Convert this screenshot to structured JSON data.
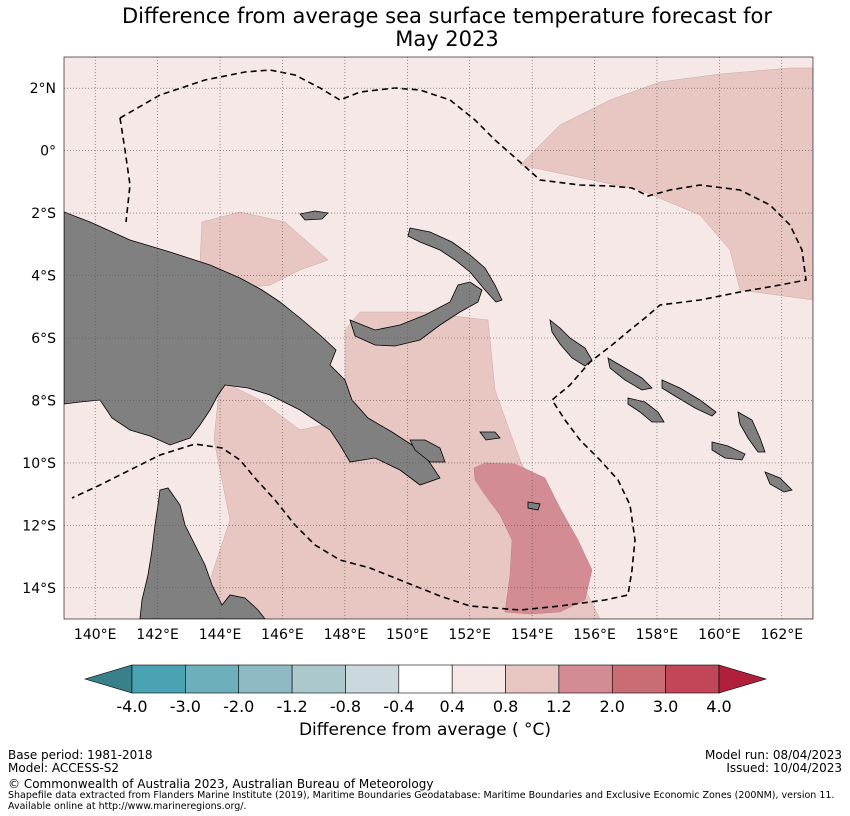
{
  "title_line1": "Difference from average sea surface temperature forecast for",
  "title_line2": "May 2023",
  "map": {
    "lon_ticks": [
      "140°E",
      "142°E",
      "144°E",
      "146°E",
      "148°E",
      "150°E",
      "152°E",
      "154°E",
      "156°E",
      "158°E",
      "160°E",
      "162°E"
    ],
    "lat_ticks": [
      "2°N",
      "0°",
      "2°S",
      "4°S",
      "6°S",
      "8°S",
      "10°S",
      "12°S",
      "14°S"
    ],
    "extent": {
      "lon_min": 139,
      "lon_max": 163,
      "lat_min": -15,
      "lat_max": 3
    },
    "colors": {
      "land": "#808080",
      "anomaly_0_4_0_8": "#f5e8e6",
      "anomaly_0_8_1_2": "#e8c6c2",
      "anomaly_1_2_2_0": "#d48c94"
    }
  },
  "colorbar": {
    "ticks": [
      "-4.0",
      "-3.0",
      "-2.0",
      "-1.2",
      "-0.8",
      "-0.4",
      "0.4",
      "0.8",
      "1.2",
      "2.0",
      "3.0",
      "4.0"
    ],
    "colors": [
      "#3a808a",
      "#4aa3b4",
      "#6eafbc",
      "#8fbac4",
      "#abc8cc",
      "#ccd9dc",
      "#ffffff",
      "#f5e8e6",
      "#e8c6c2",
      "#d48c94",
      "#c96c74",
      "#c14758",
      "#b0203a"
    ],
    "label": "Difference from average ( °C)"
  },
  "footer": {
    "base_period": "Base period: 1981-2018",
    "model": "Model: ACCESS-S2",
    "model_run": "Model run: 08/04/2023",
    "issued": "Issued: 10/04/2023",
    "copyright": "© Commonwealth of Australia 2023, Australian Bureau of Meteorology",
    "shapefile_line1": "Shapefile data extracted from Flanders Marine Institute (2019), Maritime Boundaries Geodatabase: Maritime Boundaries and Exclusive Economic Zones (200NM), version 11.",
    "shapefile_line2": "Available online at http://www.marineregions.org/."
  }
}
